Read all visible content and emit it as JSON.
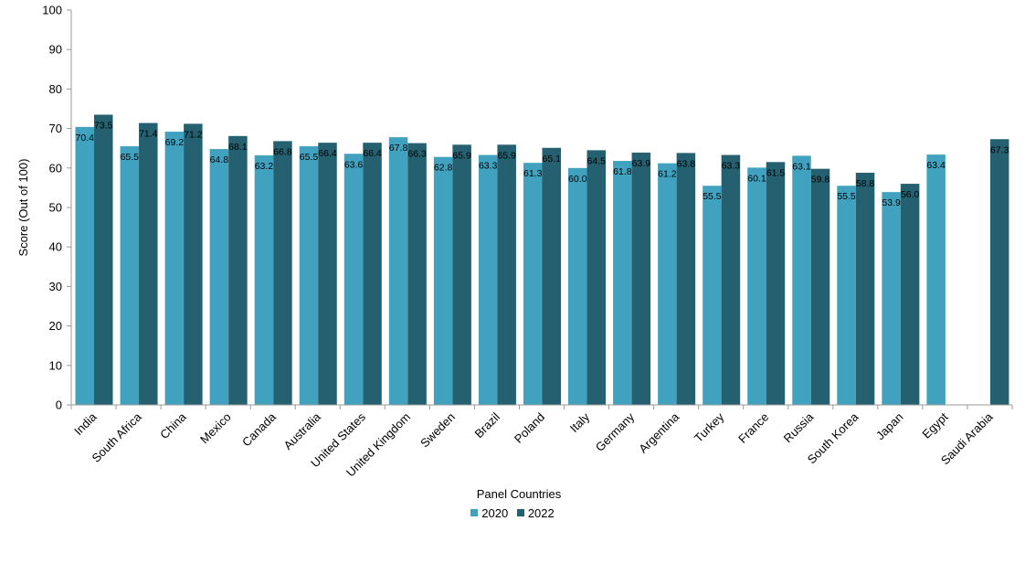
{
  "chart_data": {
    "type": "bar",
    "title": "",
    "xlabel": "Panel Countries",
    "ylabel": "Score (Out of 100)",
    "ylim": [
      0,
      100
    ],
    "yticks": [
      0,
      10,
      20,
      30,
      40,
      50,
      60,
      70,
      80,
      90,
      100
    ],
    "legend_position": "bottom",
    "grid": false,
    "categories": [
      "India",
      "South Africa",
      "China",
      "Mexico",
      "Canada",
      "Australia",
      "United States",
      "United Kingdom",
      "Sweden",
      "Brazil",
      "Poland",
      "Italy",
      "Germany",
      "Argentina",
      "Turkey",
      "France",
      "Russia",
      "South Korea",
      "Japan",
      "Egypt",
      "Saudi Arabia"
    ],
    "series": [
      {
        "name": "2020",
        "color": "#41a2c0",
        "values": [
          70.4,
          65.5,
          69.2,
          64.8,
          63.2,
          65.5,
          63.6,
          67.8,
          62.8,
          63.3,
          61.3,
          60.0,
          61.8,
          61.2,
          55.5,
          60.1,
          63.1,
          55.5,
          53.9,
          63.4,
          null
        ],
        "labels": [
          "70.4",
          "65.5",
          "69.2",
          "64.8",
          "63.2",
          "65.5",
          "63.6",
          "67.8",
          "62.8",
          "63.3",
          "61.3",
          "60.0",
          "61.8",
          "61.2",
          "55.5",
          "60.1",
          "63.1",
          "55.5",
          "53.9",
          "63.4",
          null
        ]
      },
      {
        "name": "2022",
        "color": "#24606f",
        "values": [
          73.5,
          71.4,
          71.2,
          68.1,
          66.8,
          66.4,
          66.4,
          66.3,
          65.9,
          65.9,
          65.1,
          64.5,
          63.9,
          63.8,
          63.3,
          61.5,
          59.8,
          58.8,
          56.0,
          null,
          67.3
        ],
        "labels": [
          "73.5",
          "71.4",
          "71.2",
          "68.1",
          "66.8",
          "66.4",
          "66.4",
          "66.3",
          "65.9",
          "65.9",
          "65.1",
          "64.5",
          "63.9",
          "63.8",
          "63.3",
          "61.5",
          "59.8",
          "58.8",
          "56.0",
          null,
          "67.3"
        ]
      }
    ]
  }
}
